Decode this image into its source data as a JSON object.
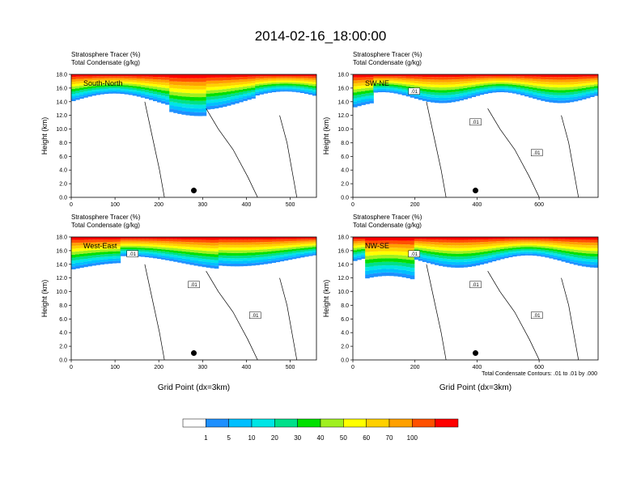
{
  "page": {
    "title": "2014-02-16_18:00:00",
    "bottom_xlabel": "Grid Point (dx=3km)",
    "contour_note": "Total Condensate Contours: .01 to .01 by .000"
  },
  "chart_data": [
    {
      "type": "heatmap",
      "subtitle_line1": "Stratosphere Tracer   (%)",
      "subtitle_line2": "Total Condensate   (g/kg)",
      "panel_label": "South-North",
      "ylabel": "Height (km)",
      "xlabel": "",
      "ylim": [
        0,
        18
      ],
      "xlim": [
        0,
        560
      ],
      "xticks": [
        "0",
        "100",
        "200",
        "300",
        "400",
        "500"
      ],
      "yticks": [
        "0.0",
        "2.0",
        "4.0",
        "6.0",
        "8.0",
        "10.0",
        "12.0",
        "14.0",
        "16.0",
        "18.0"
      ],
      "contour_labels": [],
      "marker_x": 280
    },
    {
      "type": "heatmap",
      "subtitle_line1": "Stratosphere Tracer   (%)",
      "subtitle_line2": "Total Condensate   (g/kg)",
      "panel_label": "SW-NE",
      "ylabel": "Height (km)",
      "xlabel": "",
      "ylim": [
        0,
        18
      ],
      "xlim": [
        0,
        790
      ],
      "xticks": [
        "0",
        "200",
        "400",
        "600"
      ],
      "yticks": [
        "0.0",
        "2.0",
        "4.0",
        "6.0",
        "8.0",
        "10.0",
        "12.0",
        "14.0",
        "16.0",
        "18.0"
      ],
      "contour_labels": [
        ".01",
        ".01",
        ".01"
      ],
      "marker_x": 395
    },
    {
      "type": "heatmap",
      "subtitle_line1": "Stratosphere Tracer   (%)",
      "subtitle_line2": "Total Condensate   (g/kg)",
      "panel_label": "West-East",
      "ylabel": "Height (km)",
      "xlabel": "Grid Point (dx=3km)",
      "ylim": [
        0,
        18
      ],
      "xlim": [
        0,
        560
      ],
      "xticks": [
        "0",
        "100",
        "200",
        "300",
        "400",
        "500"
      ],
      "yticks": [
        "0.0",
        "2.0",
        "4.0",
        "6.0",
        "8.0",
        "10.0",
        "12.0",
        "14.0",
        "16.0",
        "18.0"
      ],
      "contour_labels": [
        ".01",
        ".01",
        ".01"
      ],
      "marker_x": 280
    },
    {
      "type": "heatmap",
      "subtitle_line1": "Stratosphere Tracer   (%)",
      "subtitle_line2": "Total Condensate   (g/kg)",
      "panel_label": "NW-SE",
      "ylabel": "Height (km)",
      "xlabel": "Grid Point (dx=3km)",
      "ylim": [
        0,
        18
      ],
      "xlim": [
        0,
        790
      ],
      "xticks": [
        "0",
        "200",
        "400",
        "600"
      ],
      "yticks": [
        "0.0",
        "2.0",
        "4.0",
        "6.0",
        "8.0",
        "10.0",
        "12.0",
        "14.0",
        "16.0",
        "18.0"
      ],
      "contour_labels": [
        ".01",
        ".01",
        ".01"
      ],
      "marker_x": 395
    }
  ],
  "colorbar": {
    "labels": [
      "1",
      "5",
      "10",
      "20",
      "30",
      "40",
      "50",
      "60",
      "70",
      "100"
    ],
    "colors": [
      "#ffffff",
      "#1e90ff",
      "#00bfff",
      "#00e5e5",
      "#00e08a",
      "#00e000",
      "#a0f020",
      "#ffff00",
      "#ffd000",
      "#ffa000",
      "#ff5000",
      "#ff0000"
    ]
  }
}
